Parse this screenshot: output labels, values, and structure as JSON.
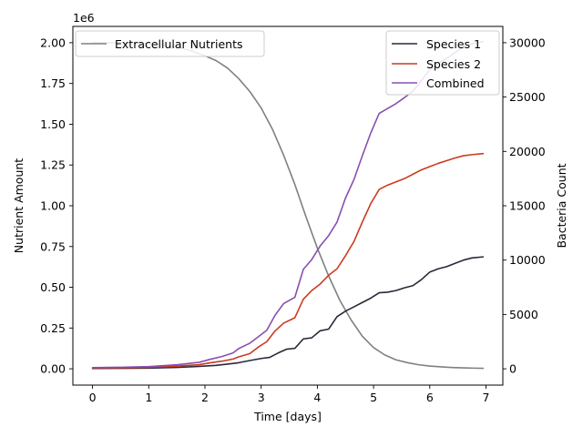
{
  "chart_data": {
    "type": "line",
    "xlabel": "Time [days]",
    "ylabel_left": "Nutrient Amount",
    "ylabel_right": "Bacteria Count",
    "left_offset_label": "1e6",
    "xlim": [
      -0.35,
      7.3
    ],
    "ylim_left": [
      -100000,
      2100000
    ],
    "ylim_right": [
      -1500,
      31500
    ],
    "x_ticks": [
      0,
      1,
      2,
      3,
      4,
      5,
      6,
      7
    ],
    "x_tick_labels": [
      "0",
      "1",
      "2",
      "3",
      "4",
      "5",
      "6",
      "7"
    ],
    "left_ticks": [
      0,
      250000,
      500000,
      750000,
      1000000,
      1250000,
      1500000,
      1750000,
      2000000
    ],
    "left_tick_labels": [
      "0.00",
      "0.25",
      "0.50",
      "0.75",
      "1.00",
      "1.25",
      "1.50",
      "1.75",
      "2.00"
    ],
    "right_ticks": [
      0,
      5000,
      10000,
      15000,
      20000,
      25000,
      30000
    ],
    "right_tick_labels": [
      "0",
      "5000",
      "10000",
      "15000",
      "20000",
      "25000",
      "30000"
    ],
    "grid": false,
    "legend_left": {
      "placement": "upper-left",
      "entries": [
        "Extracellular Nutrients"
      ]
    },
    "legend_right": {
      "placement": "upper-right",
      "entries": [
        "Species 1",
        "Species 2",
        "Combined"
      ]
    },
    "series_left": [
      {
        "name": "Extracellular Nutrients",
        "color": "#808080",
        "x": [
          0,
          0.5,
          1.0,
          1.5,
          1.8,
          2.0,
          2.2,
          2.4,
          2.6,
          2.8,
          3.0,
          3.2,
          3.4,
          3.6,
          3.8,
          4.0,
          4.2,
          4.4,
          4.6,
          4.8,
          5.0,
          5.2,
          5.4,
          5.6,
          5.8,
          6.0,
          6.2,
          6.4,
          6.6,
          6.8,
          6.95
        ],
        "y": [
          2000000,
          2000000,
          1995000,
          1975000,
          1945000,
          1920000,
          1890000,
          1845000,
          1780000,
          1700000,
          1600000,
          1470000,
          1310000,
          1130000,
          930000,
          740000,
          570000,
          420000,
          300000,
          200000,
          130000,
          85000,
          55000,
          38000,
          25000,
          17000,
          12000,
          8000,
          5500,
          4000,
          3000
        ]
      }
    ],
    "series_right": [
      {
        "name": "Species 1",
        "color": "#2a2838",
        "x": [
          0,
          0.5,
          1.0,
          1.5,
          1.9,
          2.2,
          2.4,
          2.6,
          2.8,
          3.0,
          3.15,
          3.3,
          3.45,
          3.6,
          3.75,
          3.9,
          4.05,
          4.2,
          4.35,
          4.5,
          4.65,
          4.8,
          4.95,
          5.1,
          5.25,
          5.4,
          5.55,
          5.7,
          5.85,
          6.0,
          6.15,
          6.3,
          6.45,
          6.6,
          6.75,
          6.95
        ],
        "y": [
          30,
          40,
          60,
          130,
          220,
          320,
          430,
          560,
          760,
          950,
          1050,
          1450,
          1800,
          1880,
          2750,
          2850,
          3500,
          3650,
          4800,
          5300,
          5700,
          6100,
          6500,
          7000,
          7050,
          7200,
          7450,
          7650,
          8200,
          8900,
          9200,
          9400,
          9700,
          10000,
          10200,
          10300
        ]
      },
      {
        "name": "Species 2",
        "color": "#cc3a20",
        "x": [
          0,
          0.5,
          1.0,
          1.5,
          1.9,
          2.1,
          2.3,
          2.5,
          2.6,
          2.8,
          2.95,
          3.1,
          3.25,
          3.4,
          3.6,
          3.75,
          3.9,
          4.05,
          4.2,
          4.35,
          4.5,
          4.65,
          4.8,
          4.95,
          5.1,
          5.25,
          5.4,
          5.55,
          5.7,
          5.85,
          6.0,
          6.15,
          6.3,
          6.45,
          6.6,
          6.75,
          6.95
        ],
        "y": [
          80,
          100,
          140,
          240,
          380,
          560,
          700,
          900,
          1100,
          1400,
          2000,
          2500,
          3500,
          4200,
          4700,
          6400,
          7200,
          7800,
          8600,
          9200,
          10400,
          11700,
          13500,
          15200,
          16500,
          16900,
          17200,
          17500,
          17900,
          18300,
          18600,
          18900,
          19150,
          19400,
          19600,
          19700,
          19800
        ]
      },
      {
        "name": "Combined",
        "color": "#8a4eb0",
        "x": [
          0,
          0.5,
          1.0,
          1.5,
          1.9,
          2.1,
          2.3,
          2.5,
          2.6,
          2.8,
          2.95,
          3.1,
          3.25,
          3.4,
          3.6,
          3.75,
          3.9,
          4.05,
          4.2,
          4.35,
          4.5,
          4.65,
          4.8,
          4.95,
          5.1,
          5.25,
          5.4,
          5.55,
          5.7,
          5.85,
          6.0,
          6.15,
          6.3,
          6.45,
          6.6,
          6.75,
          6.95
        ],
        "y": [
          110,
          140,
          200,
          370,
          600,
          880,
          1130,
          1460,
          1860,
          2360,
          2950,
          3550,
          4950,
          6000,
          6580,
          9150,
          10050,
          11300,
          12250,
          13500,
          15700,
          17400,
          19600,
          21700,
          23500,
          23950,
          24400,
          24950,
          25550,
          26500,
          27500,
          28100,
          28550,
          29100,
          29600,
          29900,
          30100
        ]
      }
    ]
  }
}
